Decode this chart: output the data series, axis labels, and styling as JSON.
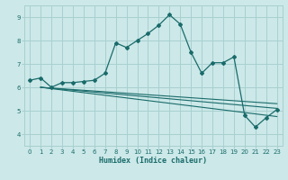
{
  "xlabel": "Humidex (Indice chaleur)",
  "bg_color": "#cce8e8",
  "grid_color": "#a8d0d0",
  "line_color": "#1a6b6b",
  "x_values": [
    0,
    1,
    2,
    3,
    4,
    5,
    6,
    7,
    8,
    9,
    10,
    11,
    12,
    13,
    14,
    15,
    16,
    17,
    18,
    19,
    20,
    21,
    22,
    23
  ],
  "main_y": [
    6.3,
    6.4,
    6.0,
    6.2,
    6.2,
    6.25,
    6.3,
    6.6,
    7.9,
    7.7,
    8.0,
    8.3,
    8.65,
    9.1,
    8.7,
    7.5,
    6.6,
    7.05,
    7.05,
    7.3,
    4.8,
    4.3,
    4.7,
    5.05
  ],
  "reg_lines": [
    [
      [
        1,
        6.0
      ],
      [
        23,
        5.1
      ]
    ],
    [
      [
        1,
        6.0
      ],
      [
        23,
        5.3
      ]
    ],
    [
      [
        1,
        6.0
      ],
      [
        23,
        4.75
      ]
    ]
  ],
  "ylim": [
    3.5,
    9.5
  ],
  "xlim": [
    -0.5,
    23.5
  ],
  "yticks": [
    4,
    5,
    6,
    7,
    8,
    9
  ],
  "xticks": [
    0,
    1,
    2,
    3,
    4,
    5,
    6,
    7,
    8,
    9,
    10,
    11,
    12,
    13,
    14,
    15,
    16,
    17,
    18,
    19,
    20,
    21,
    22,
    23
  ]
}
